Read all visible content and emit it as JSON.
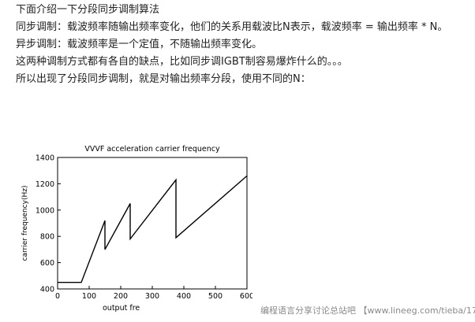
{
  "article": {
    "line1": "下面介绍一下分段同步调制算法",
    "line2": "同步调制：载波频率随输出频率变化，他们的关系用载波比N表示，载波频率 = 输出频率 * N。",
    "line3": "异步调制：载波频率是一个定值，不随输出频率变化。",
    "line4": "这两种调制方式都有各自的缺点，比如同步调IGBT制容易爆炸什么的。。。",
    "line5": "所以出现了分段同步调制，就是对输出频率分段，使用不同的N："
  },
  "chart_data": {
    "type": "line",
    "title": "VVVF acceleration carrier frequency",
    "xlabel": "output fre",
    "ylabel": "carrier frequency(Hz)",
    "xlim": [
      0,
      600
    ],
    "ylim": [
      400,
      1400
    ],
    "xticks": [
      "0",
      "100",
      "200",
      "300",
      "400",
      "500",
      "600"
    ],
    "yticks": [
      "400",
      "600",
      "800",
      "1000",
      "1200",
      "1400"
    ],
    "grid": false,
    "series": [
      {
        "x": [
          0,
          75,
          150,
          150,
          230,
          230,
          375,
          375,
          600
        ],
        "y": [
          450,
          450,
          920,
          700,
          1050,
          780,
          1230,
          790,
          1260
        ]
      }
    ]
  },
  "footer": {
    "watermark": "编程语言分享讨论总站吧 【www.lineeg.com/tieba/1779】"
  },
  "colors": {
    "text": "#222222",
    "accent": "#000000",
    "watermark": "#8a8a8a"
  }
}
